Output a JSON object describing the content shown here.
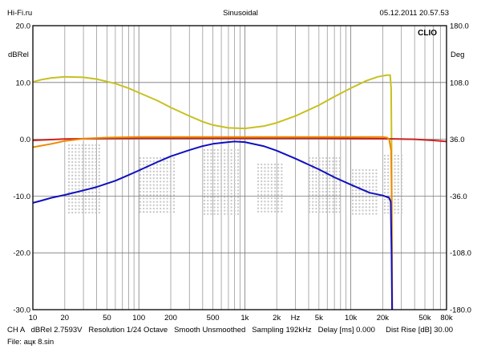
{
  "header": {
    "left": "Hi-Fi.ru",
    "center": "Sinusoidal",
    "right": "05.12.2011 20.57.53"
  },
  "brand": "CLIO",
  "footer": {
    "line1": "CH A   dBRel 2.7593V   Resolution 1/24 Octave   Smooth Unsmoothed   Sampling 192kHz   Delay [ms] 0.000     Dist Rise [dB] 30.00",
    "line2": "File: ацк 8.sin"
  },
  "chart_data": {
    "type": "line",
    "x_scale": "log",
    "xlim": [
      10,
      80000
    ],
    "ylim": [
      -30,
      20
    ],
    "y2lim": [
      -180,
      180
    ],
    "ylabel": "dBRel",
    "y2label": "Deg",
    "x_tick_labels": [
      {
        "x": 10,
        "label": "10"
      },
      {
        "x": 20,
        "label": "20"
      },
      {
        "x": 50,
        "label": "50"
      },
      {
        "x": 100,
        "label": "100"
      },
      {
        "x": 200,
        "label": "200"
      },
      {
        "x": 500,
        "label": "500"
      },
      {
        "x": 1000,
        "label": "1k"
      },
      {
        "x": 2000,
        "label": "2k"
      },
      {
        "x": 5000,
        "label": "5k"
      },
      {
        "x": 10000,
        "label": "10k"
      },
      {
        "x": 20000,
        "label": "20k"
      },
      {
        "x": 50000,
        "label": "50k"
      },
      {
        "x": 80000,
        "label": "80k"
      }
    ],
    "x_unit_label": "Hz",
    "y_tick_labels": [
      "20.0",
      "10.0",
      "0.0",
      "-10.0",
      "-20.0",
      "-30.0"
    ],
    "y_tick_values": [
      20,
      10,
      0,
      -10,
      -20,
      -30
    ],
    "y2_tick_labels": [
      "180.0",
      "108.0",
      "36.0",
      "-36.0",
      "-108.0",
      "-180.0"
    ],
    "y2_tick_values": [
      180,
      108,
      36,
      -36,
      -108,
      -180
    ],
    "grid": true,
    "series": [
      {
        "color": "#c8c020",
        "points": [
          [
            10,
            10.1
          ],
          [
            12,
            10.5
          ],
          [
            15,
            10.8
          ],
          [
            20,
            11.0
          ],
          [
            30,
            10.9
          ],
          [
            40,
            10.6
          ],
          [
            60,
            9.8
          ],
          [
            80,
            9.0
          ],
          [
            100,
            8.2
          ],
          [
            150,
            6.8
          ],
          [
            200,
            5.6
          ],
          [
            300,
            4.1
          ],
          [
            400,
            3.1
          ],
          [
            500,
            2.5
          ],
          [
            700,
            2.0
          ],
          [
            1000,
            1.9
          ],
          [
            1500,
            2.3
          ],
          [
            2000,
            2.9
          ],
          [
            3000,
            4.1
          ],
          [
            5000,
            6.0
          ],
          [
            7000,
            7.5
          ],
          [
            10000,
            9.0
          ],
          [
            14000,
            10.3
          ],
          [
            18000,
            11.0
          ],
          [
            22000,
            11.3
          ],
          [
            23500,
            11.3
          ],
          [
            24000,
            9.0
          ],
          [
            24200,
            0
          ],
          [
            24500,
            -30
          ]
        ]
      },
      {
        "color": "#cc2020",
        "points": [
          [
            10,
            -0.2
          ],
          [
            20,
            0.05
          ],
          [
            50,
            0.15
          ],
          [
            100,
            0.2
          ],
          [
            1000,
            0.2
          ],
          [
            5000,
            0.2
          ],
          [
            10000,
            0.15
          ],
          [
            20000,
            0.1
          ],
          [
            40000,
            0.0
          ],
          [
            60000,
            -0.2
          ],
          [
            80000,
            -0.4
          ]
        ]
      },
      {
        "color": "#ee8800",
        "points": [
          [
            10,
            -1.4
          ],
          [
            15,
            -0.8
          ],
          [
            20,
            -0.3
          ],
          [
            30,
            0.1
          ],
          [
            50,
            0.3
          ],
          [
            100,
            0.4
          ],
          [
            1000,
            0.4
          ],
          [
            5000,
            0.4
          ],
          [
            10000,
            0.4
          ],
          [
            20000,
            0.4
          ],
          [
            22000,
            0.3
          ],
          [
            23000,
            0.0
          ],
          [
            24000,
            -2.0
          ],
          [
            24300,
            -10
          ],
          [
            24600,
            -30
          ]
        ]
      },
      {
        "color": "#1010c0",
        "points": [
          [
            10,
            -11.2
          ],
          [
            12,
            -10.8
          ],
          [
            15,
            -10.3
          ],
          [
            20,
            -9.8
          ],
          [
            30,
            -9.0
          ],
          [
            40,
            -8.4
          ],
          [
            60,
            -7.3
          ],
          [
            80,
            -6.3
          ],
          [
            100,
            -5.5
          ],
          [
            150,
            -4.0
          ],
          [
            200,
            -3.0
          ],
          [
            300,
            -1.9
          ],
          [
            400,
            -1.2
          ],
          [
            500,
            -0.8
          ],
          [
            700,
            -0.5
          ],
          [
            800,
            -0.4
          ],
          [
            1000,
            -0.5
          ],
          [
            1500,
            -1.2
          ],
          [
            2000,
            -2.0
          ],
          [
            3000,
            -3.4
          ],
          [
            5000,
            -5.3
          ],
          [
            7000,
            -6.7
          ],
          [
            10000,
            -8.0
          ],
          [
            15000,
            -9.4
          ],
          [
            20000,
            -9.9
          ],
          [
            23000,
            -10.3
          ],
          [
            23800,
            -11.0
          ],
          [
            24200,
            -20
          ],
          [
            24500,
            -30
          ]
        ]
      }
    ]
  }
}
